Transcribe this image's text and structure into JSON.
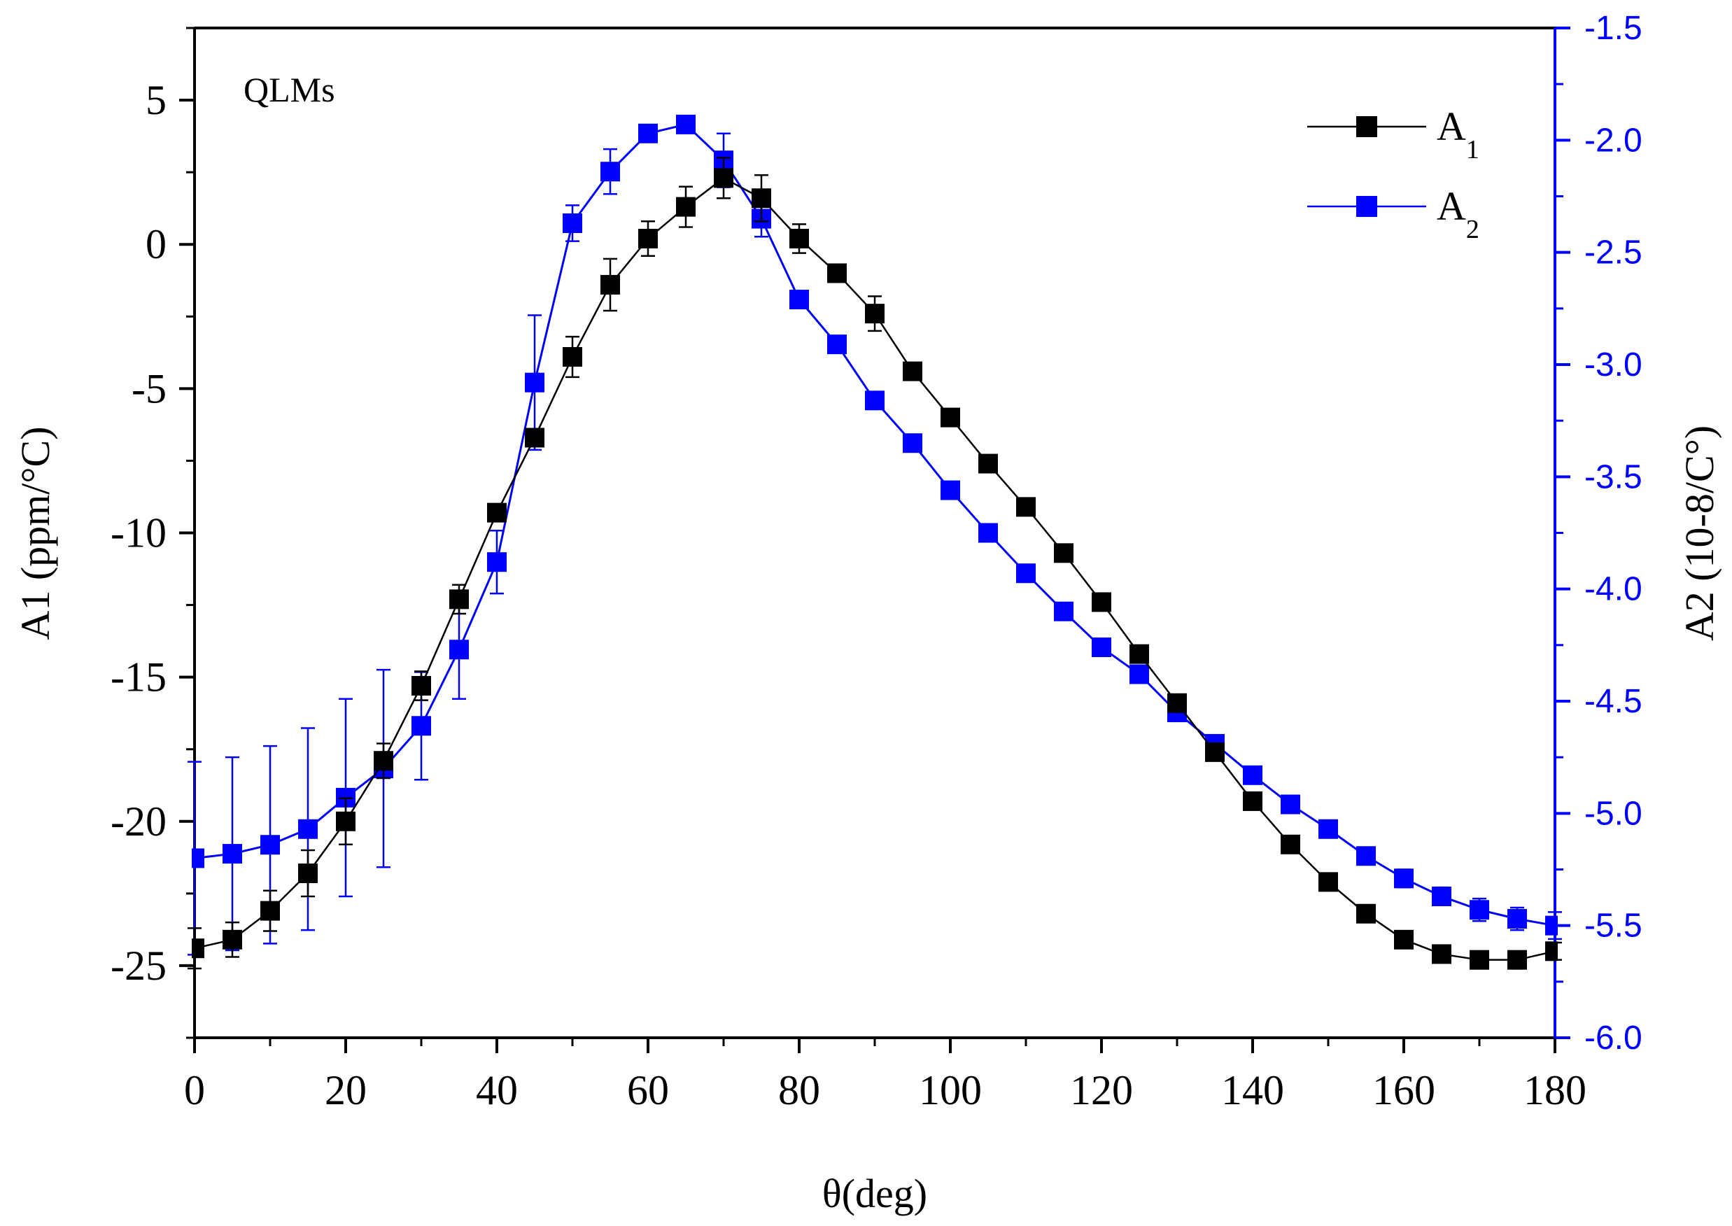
{
  "chart_data": {
    "type": "line",
    "annotation": "QLMs",
    "xlabel": "θ(deg)",
    "xlim": [
      0,
      180
    ],
    "xticks": [
      "0",
      "20",
      "40",
      "60",
      "80",
      "100",
      "120",
      "140",
      "160",
      "180"
    ],
    "y_left": {
      "label": "A1 (ppm/°C)",
      "lim": [
        -27.5,
        7.5
      ],
      "ticks": [
        "5",
        "0",
        "-5",
        "-10",
        "-15",
        "-20",
        "-25"
      ]
    },
    "y_right": {
      "label": "A2 (10-8/C°)",
      "lim": [
        -6.0,
        -1.5
      ],
      "ticks": [
        "-1.5",
        "-2.0",
        "-2.5",
        "-3.0",
        "-3.5",
        "-4.0",
        "-4.5",
        "-5.0",
        "-5.5",
        "-6.0"
      ]
    },
    "legend": {
      "position": "top-right"
    },
    "series": [
      {
        "name": "A",
        "subscript": "1",
        "axis": "left",
        "color": "#000000",
        "x": [
          0,
          5,
          10,
          15,
          20,
          25,
          30,
          35,
          40,
          45,
          50,
          55,
          60,
          65,
          70,
          75,
          80,
          85,
          90,
          95,
          100,
          105,
          110,
          115,
          120,
          125,
          130,
          135,
          140,
          145,
          150,
          155,
          160,
          165,
          170,
          175,
          180
        ],
        "y": [
          -24.4,
          -24.1,
          -23.1,
          -21.8,
          -20.0,
          -17.9,
          -15.3,
          -12.3,
          -9.3,
          -6.7,
          -3.9,
          -1.4,
          0.2,
          1.3,
          2.3,
          1.6,
          0.2,
          -1.0,
          -2.4,
          -4.4,
          -6.0,
          -7.6,
          -9.1,
          -10.7,
          -12.4,
          -14.2,
          -15.9,
          -17.6,
          -19.3,
          -20.8,
          -22.1,
          -23.2,
          -24.1,
          -24.6,
          -24.8,
          -24.8,
          -24.5
        ],
        "err": [
          0.7,
          0.6,
          0.7,
          0.8,
          0.8,
          0.6,
          0.5,
          0.5,
          0.3,
          0.3,
          0.7,
          0.9,
          0.6,
          0.7,
          0.7,
          0.8,
          0.5,
          0.3,
          0.6,
          0.2,
          0.2,
          0.2,
          0.2,
          0.2,
          0.2,
          0.2,
          0.2,
          0.2,
          0.2,
          0.2,
          0.2,
          0.2,
          0.2,
          0.2,
          0.3,
          0.3,
          0.3
        ]
      },
      {
        "name": "A",
        "subscript": "2",
        "axis": "right",
        "color": "#0000ff",
        "x": [
          0,
          5,
          10,
          15,
          20,
          25,
          30,
          35,
          40,
          45,
          50,
          55,
          60,
          65,
          70,
          75,
          80,
          85,
          90,
          95,
          100,
          105,
          110,
          115,
          120,
          125,
          130,
          135,
          140,
          145,
          150,
          155,
          160,
          165,
          170,
          175,
          180
        ],
        "y": [
          -5.2,
          -5.18,
          -5.14,
          -5.07,
          -4.93,
          -4.8,
          -4.61,
          -4.27,
          -3.88,
          -3.08,
          -2.37,
          -2.14,
          -1.97,
          -1.93,
          -2.09,
          -2.35,
          -2.71,
          -2.91,
          -3.16,
          -3.35,
          -3.56,
          -3.75,
          -3.93,
          -4.1,
          -4.26,
          -4.38,
          -4.55,
          -4.69,
          -4.83,
          -4.96,
          -5.07,
          -5.19,
          -5.29,
          -5.37,
          -5.43,
          -5.47,
          -5.5
        ],
        "err": [
          0.43,
          0.43,
          0.44,
          0.45,
          0.44,
          0.44,
          0.24,
          0.22,
          0.14,
          0.3,
          0.08,
          0.1,
          0.02,
          0.02,
          0.12,
          0.08,
          0.02,
          0.02,
          0.02,
          0.02,
          0.02,
          0.02,
          0.02,
          0.02,
          0.02,
          0.02,
          0.02,
          0.02,
          0.02,
          0.02,
          0.02,
          0.02,
          0.04,
          0.04,
          0.05,
          0.05,
          0.06
        ]
      }
    ]
  }
}
